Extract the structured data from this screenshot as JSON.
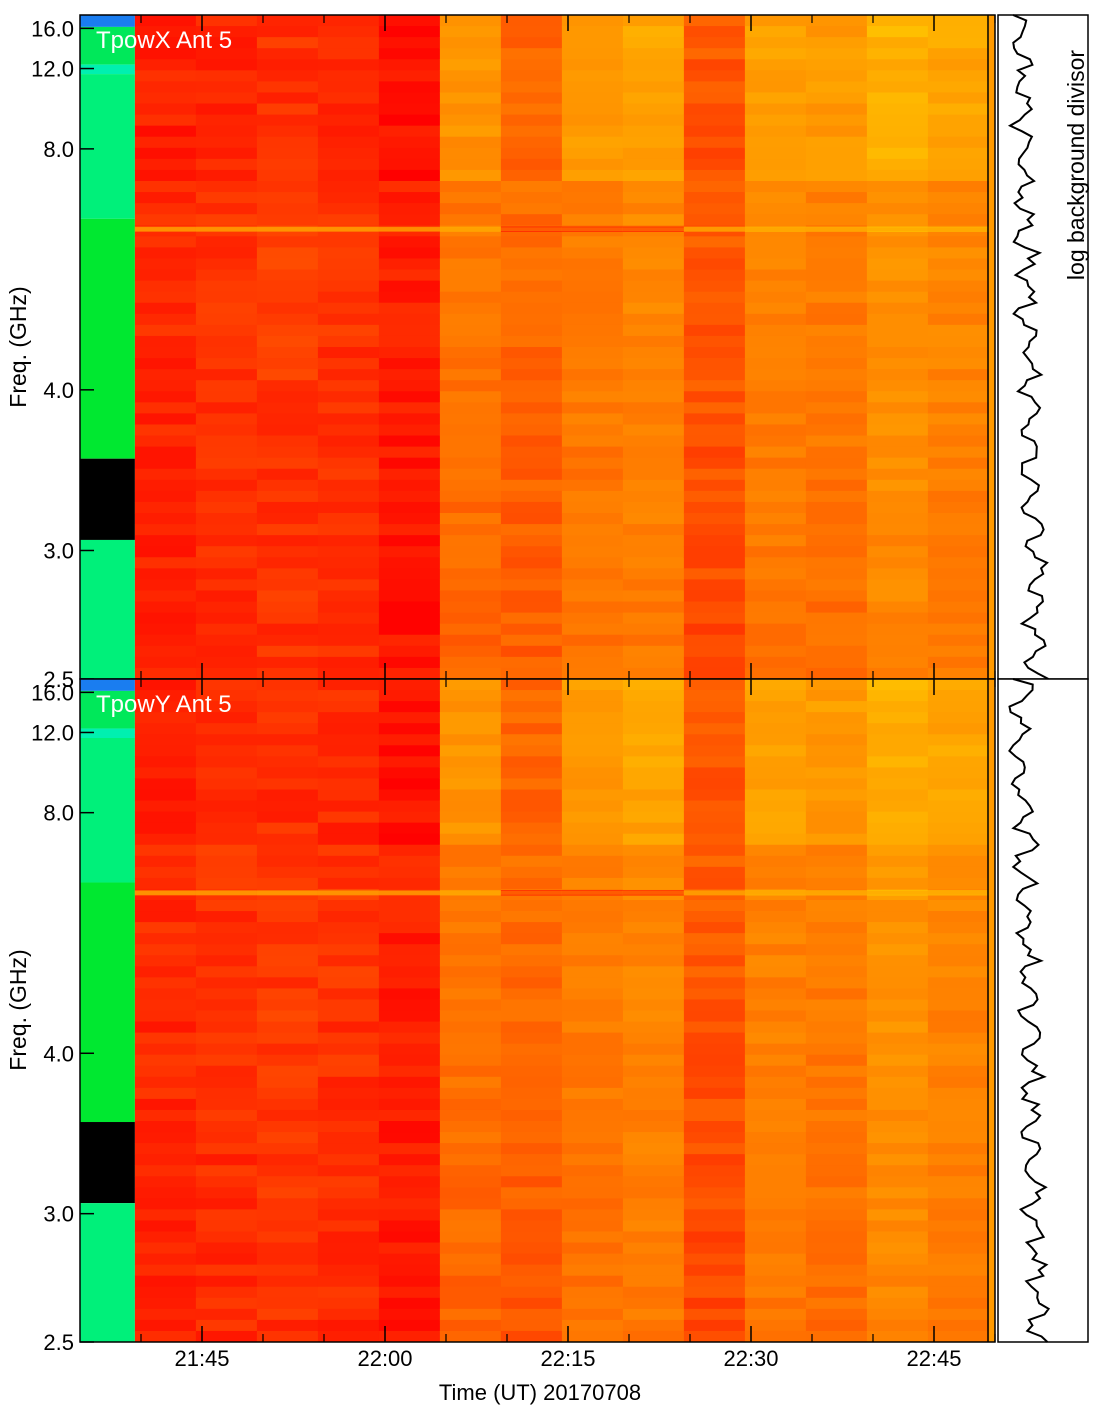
{
  "chart_data": {
    "type": "heatmap",
    "xlabel": "Time (UT) 20170708",
    "x_tick_labels": [
      "21:45",
      "22:00",
      "22:15",
      "22:30",
      "22:45"
    ],
    "x_tick_minutes": [
      105,
      120,
      135,
      150,
      165
    ],
    "x_minor_minutes": [
      100,
      110,
      115,
      125,
      130,
      140,
      145,
      155,
      160,
      170
    ],
    "time_start_minutes": 95,
    "time_end_minutes": 170,
    "ylabel": "Freq. (GHz)",
    "y_scale": "reciprocal",
    "ylim": [
      2.5,
      18.0
    ],
    "y_tick_values": [
      2.5,
      3.0,
      4.0,
      8.0,
      12.0,
      16.0
    ],
    "y_tick_labels": [
      "2.5",
      "3.0",
      "4.0",
      "8.0",
      "12.0",
      "16.0"
    ],
    "colorbar_label": "log background divisor",
    "columns": [
      {
        "start": 99.5,
        "level": 0.1
      },
      {
        "start": 104.5,
        "level": 0.12
      },
      {
        "start": 109.5,
        "level": 0.15
      },
      {
        "start": 114.5,
        "level": 0.13
      },
      {
        "start": 119.5,
        "level": 0.06
      },
      {
        "start": 124.5,
        "level": 0.32
      },
      {
        "start": 129.5,
        "level": 0.28
      },
      {
        "start": 134.5,
        "level": 0.36
      },
      {
        "start": 139.5,
        "level": 0.4
      },
      {
        "start": 144.5,
        "level": 0.22
      },
      {
        "start": 149.5,
        "level": 0.38
      },
      {
        "start": 154.5,
        "level": 0.35
      },
      {
        "start": 159.5,
        "level": 0.46
      },
      {
        "start": 164.5,
        "level": 0.4
      }
    ],
    "background_bands": [
      {
        "f_low": 16.2,
        "f_high": 18.0,
        "color": "#1a7df0"
      },
      {
        "f_low": 12.3,
        "f_high": 16.2,
        "color": "#00e85a"
      },
      {
        "f_low": 11.6,
        "f_high": 12.3,
        "color": "#00f0b0"
      },
      {
        "f_low": 6.2,
        "f_high": 11.6,
        "color": "#00f07a"
      },
      {
        "f_low": 3.5,
        "f_high": 6.2,
        "color": "#00e830"
      },
      {
        "f_low": 3.05,
        "f_high": 3.5,
        "color": "#000000"
      },
      {
        "f_low": 2.5,
        "f_high": 3.05,
        "color": "#00f07a"
      }
    ],
    "spectral_line_ghz": 6.0,
    "panels": [
      {
        "title": "TpowX Ant 5"
      },
      {
        "title": "TpowY Ant 5"
      }
    ]
  }
}
